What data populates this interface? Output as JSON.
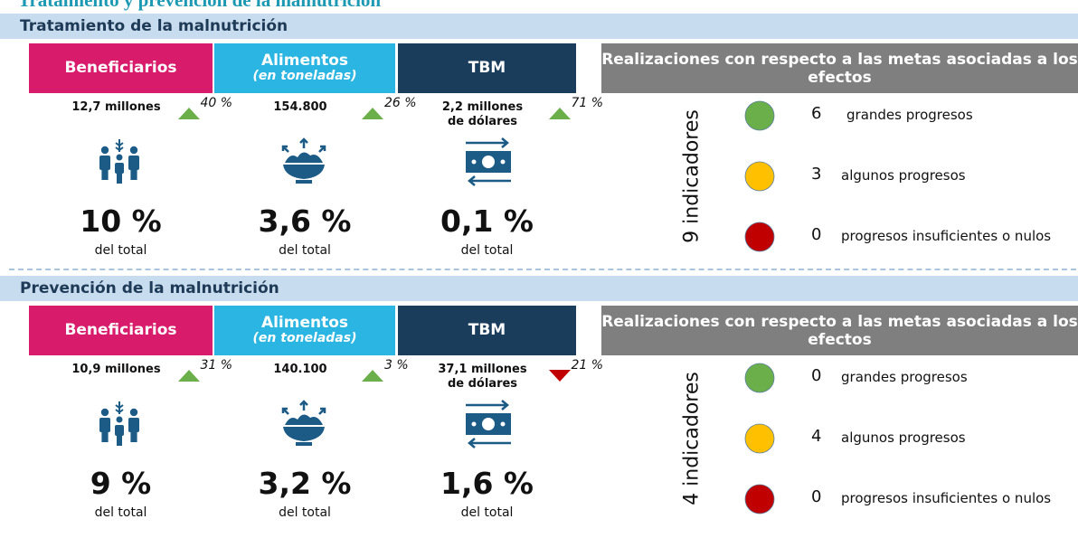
{
  "title": "Tratamiento y prevención de la malnutrición",
  "sections": [
    {
      "heading": "Tratamiento de la malnutrición",
      "columns": [
        {
          "header": "Beneficiarios",
          "amount": "12,7 millones",
          "change": "40 %",
          "direction": "up",
          "share": "10 %",
          "share_note": "del total",
          "color": "#d81b6a"
        },
        {
          "header": "Alimentos",
          "subheader": "(en toneladas)",
          "amount": "154.800",
          "change": "26 %",
          "direction": "up",
          "share": "3,6 %",
          "share_note": "del total",
          "color": "#2bb5e2"
        },
        {
          "header": "TBM",
          "amount": "2,2 millones de dólares",
          "change": "71 %",
          "direction": "up",
          "share": "0,1 %",
          "share_note": "del total",
          "color": "#1b3d5c"
        }
      ],
      "results": {
        "header": "Realizaciones con respecto a las metas asociadas a los efectos",
        "indicators": "9 indicadores",
        "rows": [
          {
            "count": 6,
            "label": "grandes progresos",
            "color": "#6aaf4a"
          },
          {
            "count": 3,
            "label": "algunos progresos",
            "color": "#ffc000"
          },
          {
            "count": 0,
            "label": "progresos insuficientes o nulos",
            "color": "#c00000"
          }
        ]
      }
    },
    {
      "heading": "Prevención de la malnutrición",
      "columns": [
        {
          "header": "Beneficiarios",
          "amount": "10,9 millones",
          "change": "31 %",
          "direction": "up",
          "share": "9 %",
          "share_note": "del total",
          "color": "#d81b6a"
        },
        {
          "header": "Alimentos",
          "subheader": "(en toneladas)",
          "amount": "140.100",
          "change": "3 %",
          "direction": "up",
          "share": "3,2 %",
          "share_note": "del total",
          "color": "#2bb5e2"
        },
        {
          "header": "TBM",
          "amount": "37,1 millones de dólares",
          "change": "21 %",
          "direction": "down",
          "share": "1,6 %",
          "share_note": "del total",
          "color": "#1b3d5c"
        }
      ],
      "results": {
        "header": "Realizaciones con respecto a las metas asociadas a los efectos",
        "indicators": "4 indicadores",
        "rows": [
          {
            "count": 0,
            "label": "grandes progresos",
            "color": "#6aaf4a"
          },
          {
            "count": 4,
            "label": "algunos progresos",
            "color": "#ffc000"
          },
          {
            "count": 0,
            "label": "progresos insuficientes o nulos",
            "color": "#c00000"
          }
        ]
      }
    }
  ]
}
